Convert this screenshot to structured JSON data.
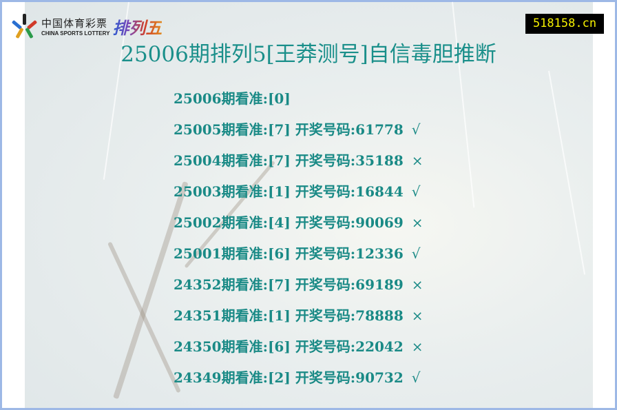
{
  "logo": {
    "cn": "中国体育彩票",
    "en": "CHINA SPORTS LOTTERY",
    "game": "排列五"
  },
  "site_badge": "518158.cn",
  "title": "25006期排列5[王莽测号]自信毒胆推断",
  "rows": [
    {
      "text": "25006期看准:[0]",
      "mark": ""
    },
    {
      "text": "25005期看准:[7] 开奖号码:61778",
      "mark": "√"
    },
    {
      "text": "25004期看准:[7] 开奖号码:35188",
      "mark": "×"
    },
    {
      "text": "25003期看准:[1] 开奖号码:16844",
      "mark": "√"
    },
    {
      "text": "25002期看准:[4] 开奖号码:90069",
      "mark": "×"
    },
    {
      "text": "25001期看准:[6] 开奖号码:12336",
      "mark": "√"
    },
    {
      "text": "24352期看准:[7] 开奖号码:69189",
      "mark": "×"
    },
    {
      "text": "24351期看准:[1] 开奖号码:78888",
      "mark": "×"
    },
    {
      "text": "24350期看准:[6] 开奖号码:22042",
      "mark": "×"
    },
    {
      "text": "24349期看准:[2] 开奖号码:90732",
      "mark": "√"
    }
  ],
  "colors": {
    "text": "#1a8a86",
    "border": "#9db8e6",
    "badge_bg": "#000000",
    "badge_text": "#f5f000"
  }
}
